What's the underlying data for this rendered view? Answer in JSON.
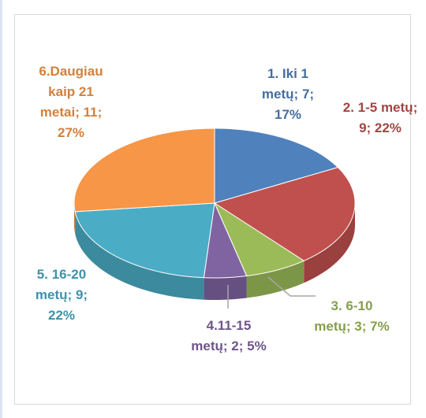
{
  "chart_data": {
    "type": "pie",
    "categories": [
      "1. Iki 1 metų",
      "2. 1-5 metų",
      "3. 6-10 metų",
      "4.11-15 metų",
      "5. 16-20 metų",
      "6.Daugiau kaip 21 metai"
    ],
    "values": [
      7,
      9,
      3,
      2,
      9,
      11
    ],
    "value_labels": [
      "7; 17%",
      "9; 22%",
      "3; 7%",
      "2; 5%",
      "9; 22%",
      "11; 27%"
    ],
    "colors": [
      "#4f81bd",
      "#c0504d",
      "#9bbb59",
      "#8064a2",
      "#4bacc6",
      "#f79646"
    ],
    "three_d": true
  }
}
